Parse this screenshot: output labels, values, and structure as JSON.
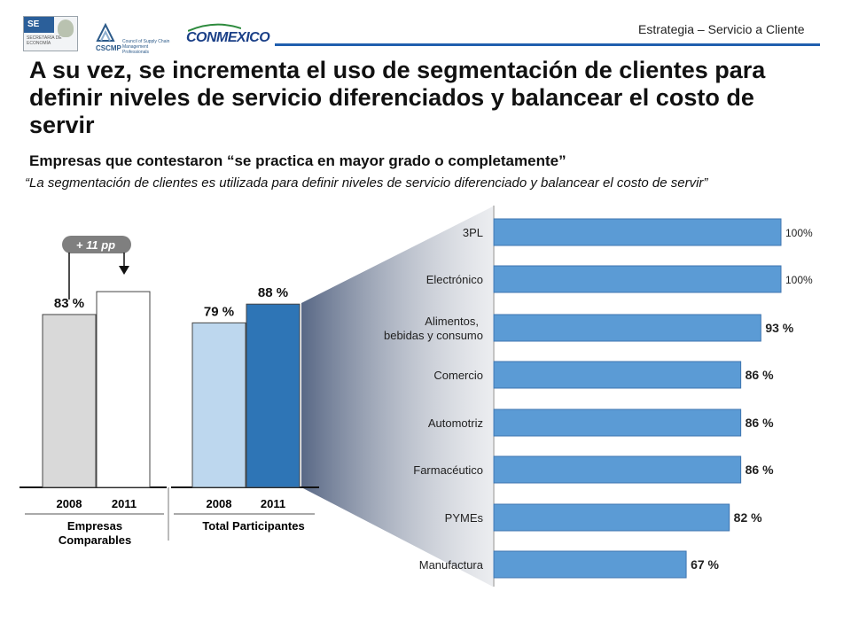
{
  "header": {
    "section_label": "Estrategia – Servicio a Cliente"
  },
  "logos": {
    "se": {
      "abbr": "SE",
      "text": "SECRETARÍA DE ECONOMÍA"
    },
    "cscmp": {
      "abbr": "CSCMP",
      "text": "Council of Supply Chain Management Professionals"
    },
    "conmexico": {
      "text": "CONMEXICO"
    }
  },
  "title": "A su vez, se incrementa el uso de segmentación de clientes para definir niveles de servicio diferenciados y balancear el costo de servir",
  "subtitle": "Empresas que contestaron “se practica en mayor grado o completamente”",
  "quote": "“La segmentación de clientes es utilizada para definir niveles de servicio diferenciado y balancear el costo de servir”",
  "colors": {
    "grey_bar": "#d9d9d9",
    "white_bar": "#ffffff",
    "light_blue": "#bdd7ee",
    "dark_blue": "#2e75b6",
    "hbar_blue": "#5b9bd5",
    "badge": "#7f7f7f",
    "header_line": "#1f5fae"
  },
  "chart_data": [
    {
      "type": "bar",
      "groups": [
        {
          "label": "Empresas Comparables",
          "categories": [
            "2008",
            "2011"
          ],
          "values": [
            83,
            94
          ],
          "value_labels": [
            "83 %",
            ""
          ]
        },
        {
          "label": "Total Participantes",
          "categories": [
            "2008",
            "2011"
          ],
          "values": [
            79,
            88
          ],
          "value_labels": [
            "79 %",
            "88 %"
          ]
        }
      ],
      "annotation": "+ 11 pp",
      "unit": "%"
    },
    {
      "type": "bar",
      "orientation": "horizontal",
      "categories": [
        "3PL",
        "Electrónico",
        "Alimentos, bebidas y consumo",
        "Comercio",
        "Automotriz",
        "Farmacéutico",
        "PYMEs",
        "Manufactura"
      ],
      "values": [
        100,
        100,
        93,
        86,
        86,
        86,
        82,
        67
      ],
      "value_labels": [
        "100%",
        "100%",
        "93 %",
        "86 %",
        "86 %",
        "86 %",
        "82 %",
        "67 %"
      ],
      "xlim": [
        0,
        100
      ]
    }
  ]
}
